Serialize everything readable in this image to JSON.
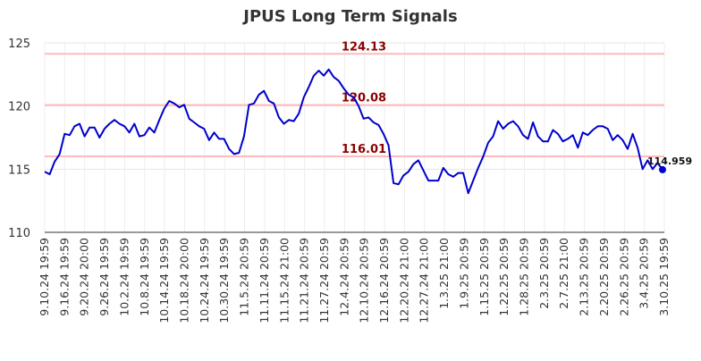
{
  "chart_data": {
    "type": "line",
    "title": "JPUS Long Term Signals",
    "xlabel": "",
    "ylabel": "",
    "ylim": [
      110,
      125
    ],
    "y_ticks": [
      110,
      115,
      120,
      125
    ],
    "grid": true,
    "x_tick_labels": [
      "9.10.24 19:59",
      "9.16.24 19:59",
      "9.20.24 20:00",
      "9.26.24 19:59",
      "10.2.24 19:59",
      "10.8.24 19:59",
      "10.14.24 19:59",
      "10.18.24 20:00",
      "10.24.24 19:59",
      "10.30.24 19:59",
      "11.5.24 20:59",
      "11.11.24 20:59",
      "11.15.24 21:00",
      "11.21.24 20:59",
      "11.27.24 20:59",
      "12.4.24 20:59",
      "12.10.24 20:59",
      "12.16.24 20:59",
      "12.20.24 21:00",
      "12.27.24 21:00",
      "1.3.25 21:00",
      "1.9.25 20:59",
      "1.15.25 20:59",
      "1.22.25 20:59",
      "1.28.25 20:59",
      "2.3.25 20:59",
      "2.7.25 21:00",
      "2.13.25 20:59",
      "2.20.25 20:59",
      "2.26.25 20:59",
      "3.4.25 20:59",
      "3.10.25 19:59"
    ],
    "series": [
      {
        "color": "#0000cc",
        "values": [
          114.8,
          114.6,
          115.6,
          116.2,
          117.8,
          117.7,
          118.4,
          118.6,
          117.6,
          118.3,
          118.3,
          117.5,
          118.2,
          118.6,
          118.9,
          118.6,
          118.4,
          117.9,
          118.6,
          117.6,
          117.7,
          118.3,
          117.9,
          118.9,
          119.8,
          120.4,
          120.2,
          119.9,
          120.1,
          119.0,
          118.7,
          118.4,
          118.2,
          117.3,
          117.9,
          117.4,
          117.4,
          116.6,
          116.2,
          116.3,
          117.6,
          120.1,
          120.2,
          120.9,
          121.2,
          120.4,
          120.2,
          119.1,
          118.6,
          118.9,
          118.8,
          119.4,
          120.7,
          121.5,
          122.4,
          122.8,
          122.4,
          122.9,
          122.3,
          122.0,
          121.4,
          120.9,
          120.7,
          120.0,
          119.0,
          119.1,
          118.7,
          118.5,
          117.8,
          116.9,
          113.9,
          113.8,
          114.5,
          114.8,
          115.4,
          115.7,
          114.9,
          114.1,
          114.1,
          114.1,
          115.1,
          114.6,
          114.4,
          114.7,
          114.7,
          113.1,
          114.1,
          115.1,
          116.0,
          117.1,
          117.6,
          118.8,
          118.2,
          118.6,
          118.8,
          118.4,
          117.7,
          117.4,
          118.7,
          117.6,
          117.2,
          117.2,
          118.1,
          117.8,
          117.2,
          117.4,
          117.7,
          116.7,
          117.9,
          117.7,
          118.1,
          118.4,
          118.4,
          118.2,
          117.3,
          117.7,
          117.3,
          116.6,
          117.8,
          116.7,
          115.0,
          115.7,
          115.0,
          115.5,
          114.959
        ]
      }
    ],
    "reference_lines": [
      {
        "value": 124.13,
        "label": "124.13",
        "color": "#ffbbbb",
        "label_color": "#8b0000"
      },
      {
        "value": 120.08,
        "label": "120.08",
        "color": "#ffbbbb",
        "label_color": "#8b0000"
      },
      {
        "value": 116.01,
        "label": "116.01",
        "color": "#ffbbbb",
        "label_color": "#8b0000"
      }
    ],
    "last_value_label": "114.959"
  }
}
